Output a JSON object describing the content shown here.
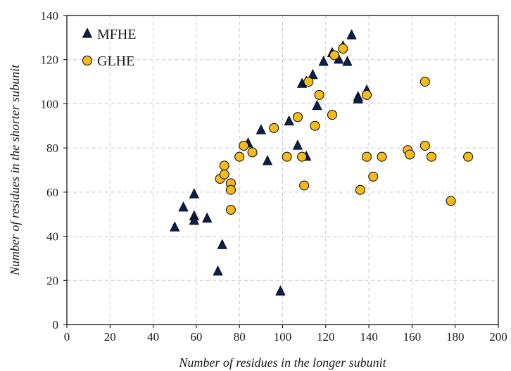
{
  "chart_data": {
    "type": "scatter",
    "xlabel": "Number of residues in the longer subunit",
    "ylabel": "Number of residues in the shorter subunit",
    "xlim": [
      0,
      200
    ],
    "ylim": [
      0,
      140
    ],
    "x_ticks": [
      0,
      20,
      40,
      60,
      80,
      100,
      120,
      140,
      160,
      180,
      200
    ],
    "y_ticks": [
      0,
      20,
      40,
      60,
      80,
      100,
      120,
      140
    ],
    "x_tick_labels": [
      "0",
      "20",
      "40",
      "60",
      "80",
      "100",
      "120",
      "140",
      "160",
      "180",
      "200"
    ],
    "y_tick_labels": [
      "0",
      "20",
      "40",
      "60",
      "80",
      "100",
      "120",
      "140"
    ],
    "grid": true,
    "legend_position": "top-left",
    "series": [
      {
        "name": "MFHE",
        "marker": "triangle",
        "color": "#0d1f4f",
        "points": [
          [
            50,
            44
          ],
          [
            54,
            53
          ],
          [
            59,
            59
          ],
          [
            59,
            49
          ],
          [
            59,
            47
          ],
          [
            65,
            48
          ],
          [
            70,
            24
          ],
          [
            72,
            36
          ],
          [
            84,
            82
          ],
          [
            90,
            88
          ],
          [
            93,
            74
          ],
          [
            99,
            15
          ],
          [
            103,
            92
          ],
          [
            107,
            81
          ],
          [
            109,
            109
          ],
          [
            111,
            76
          ],
          [
            111,
            110
          ],
          [
            114,
            113
          ],
          [
            116,
            99
          ],
          [
            119,
            119
          ],
          [
            123,
            123
          ],
          [
            126,
            120
          ],
          [
            128,
            126
          ],
          [
            130,
            119
          ],
          [
            132,
            131
          ],
          [
            135,
            103
          ],
          [
            135,
            102
          ],
          [
            139,
            106
          ]
        ]
      },
      {
        "name": "GLHE",
        "marker": "circle",
        "color": "#f5bb1d",
        "points": [
          [
            71,
            66
          ],
          [
            73,
            72
          ],
          [
            73,
            68
          ],
          [
            76,
            64
          ],
          [
            76,
            61
          ],
          [
            76,
            52
          ],
          [
            80,
            76
          ],
          [
            82,
            81
          ],
          [
            86,
            78
          ],
          [
            96,
            89
          ],
          [
            102,
            76
          ],
          [
            107,
            94
          ],
          [
            109,
            76
          ],
          [
            110,
            63
          ],
          [
            112,
            110
          ],
          [
            115,
            90
          ],
          [
            117,
            104
          ],
          [
            123,
            95
          ],
          [
            124,
            122
          ],
          [
            128,
            125
          ],
          [
            136,
            61
          ],
          [
            139,
            104
          ],
          [
            139,
            76
          ],
          [
            142,
            67
          ],
          [
            146,
            76
          ],
          [
            158,
            79
          ],
          [
            159,
            77
          ],
          [
            166,
            110
          ],
          [
            166,
            81
          ],
          [
            169,
            76
          ],
          [
            178,
            56
          ],
          [
            186,
            76
          ]
        ]
      }
    ]
  }
}
